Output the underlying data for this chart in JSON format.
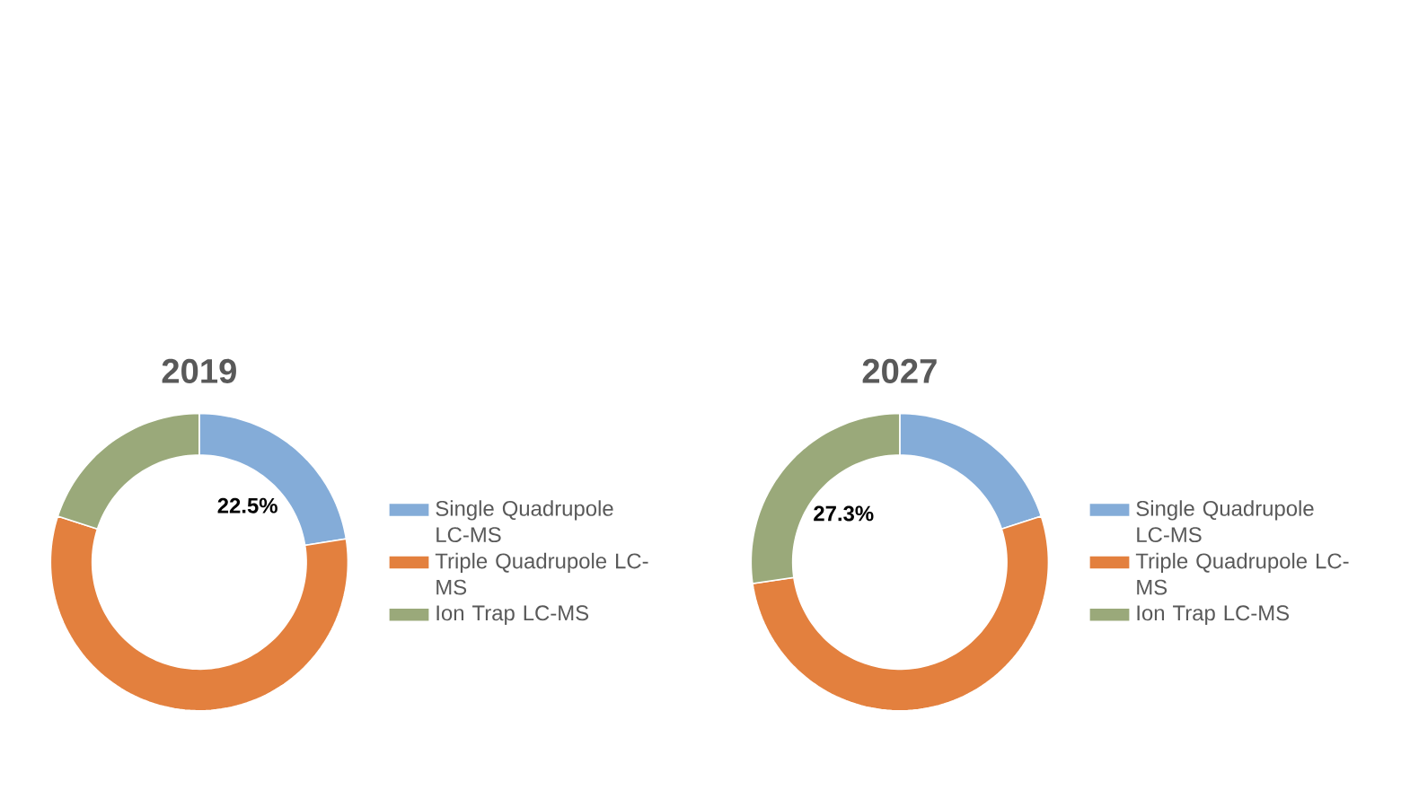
{
  "chart_data": [
    {
      "type": "donut",
      "title": "2019",
      "categories": [
        "Single Quadrupole LC-MS",
        "Triple Quadrupole LC-MS",
        "Ion Trap LC-MS"
      ],
      "values": [
        22.5,
        57.5,
        20.0
      ],
      "colors": [
        "#84acd8",
        "#e3803e",
        "#9aa97a"
      ],
      "value_labels": [
        "22.5%",
        null,
        null
      ],
      "legend": "right"
    },
    {
      "type": "donut",
      "title": "2027",
      "categories": [
        "Single Quadrupole LC-MS",
        "Triple Quadrupole LC-MS",
        "Ion Trap LC-MS"
      ],
      "values": [
        20.0,
        52.7,
        27.3
      ],
      "colors": [
        "#84acd8",
        "#e3803e",
        "#9aa97a"
      ],
      "value_labels": [
        null,
        null,
        "27.3%"
      ],
      "legend": "right"
    }
  ]
}
